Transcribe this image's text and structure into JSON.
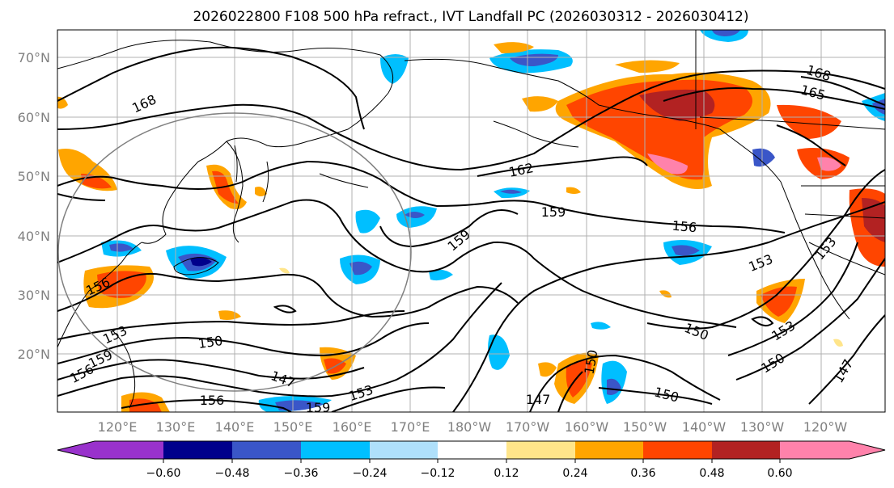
{
  "title": "2026022800 F108 500 hPa refract., IVT Landfall PC (2026030312 - 2026030412)",
  "map": {
    "lat_labels": [
      "70°N",
      "60°N",
      "50°N",
      "40°N",
      "30°N",
      "20°N"
    ],
    "lon_labels": [
      "120°E",
      "130°E",
      "140°E",
      "150°E",
      "160°E",
      "170°E",
      "180°W",
      "170°W",
      "160°W",
      "150°W",
      "140°W",
      "130°W",
      "120°W"
    ],
    "contour_labels": [
      "168",
      "165",
      "168",
      "162",
      "159",
      "159",
      "156",
      "156",
      "153",
      "153",
      "150",
      "150",
      "150",
      "150",
      "153",
      "147",
      "147",
      "153",
      "156",
      "159",
      "150",
      "156",
      "159",
      "153",
      "147"
    ],
    "colors": {
      "land_outline": "#000000",
      "grid": "#b0b0b0",
      "contour": "#000000",
      "circle": "#808080"
    }
  },
  "colorbar": {
    "ticks": [
      "−0.60",
      "−0.48",
      "−0.36",
      "−0.24",
      "−0.12",
      "0.12",
      "0.24",
      "0.36",
      "0.48",
      "0.60"
    ],
    "colors": [
      "#9932cc",
      "#00008b",
      "#3a56c8",
      "#00bfff",
      "#afe0fb",
      "#ffffff",
      "#ffe58a",
      "#ffa500",
      "#ff4500",
      "#b22222",
      "#ff82ab"
    ]
  }
}
